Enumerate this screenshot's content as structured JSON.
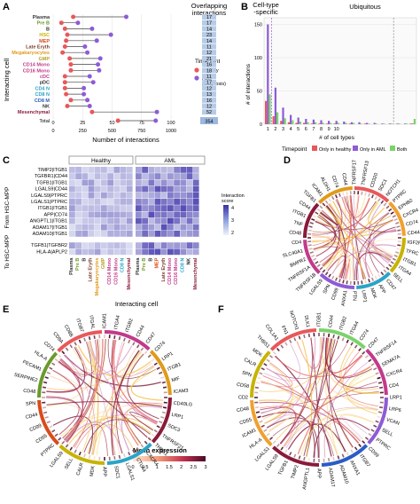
{
  "panels": {
    "a": "A",
    "b": "B",
    "c": "C",
    "d": "D",
    "e": "E",
    "f": "F"
  },
  "panelA": {
    "ylabel": "Interacting cell",
    "xlabel": "Number of interactions",
    "overlap_title": "Overlapping\ninteractions",
    "legend_title": "Timepoint",
    "legend_items": [
      {
        "label": "Healthy",
        "color": "#e8585a"
      },
      {
        "label": "AML\n(diagnosis)",
        "color": "#8e5bd6"
      }
    ],
    "xticks": [
      "0",
      "25",
      "50",
      "75",
      "100"
    ],
    "total_xticks": [
      "0",
      "250",
      "500",
      "750",
      "1000"
    ],
    "cells": [
      {
        "name": "Plasma",
        "color": "#333333",
        "healthy": 17,
        "aml": 62,
        "overlap": "17"
      },
      {
        "name": "Pre B",
        "color": "#6a9a2a",
        "healthy": 7,
        "aml": 21,
        "overlap": "17"
      },
      {
        "name": "B",
        "color": "#333333",
        "healthy": 10,
        "aml": 33,
        "overlap": "14"
      },
      {
        "name": "HSC",
        "color": "#c7b300",
        "healthy": 12,
        "aml": 49,
        "overlap": "23"
      },
      {
        "name": "MEP",
        "color": "#d94b1a",
        "healthy": 11,
        "aml": 37,
        "overlap": "14"
      },
      {
        "name": "Late Eryth",
        "color": "#7a3b2a",
        "healthy": 10,
        "aml": 27,
        "overlap": "11"
      },
      {
        "name": "Megakaryocytes",
        "color": "#e09a1a",
        "healthy": 8,
        "aml": 29,
        "overlap": "12"
      },
      {
        "name": "GMP",
        "color": "#b5a12a",
        "healthy": 14,
        "aml": 40,
        "overlap": "21"
      },
      {
        "name": "CD14 Mono",
        "color": "#c23a8a",
        "healthy": 15,
        "aml": 38,
        "overlap": "16"
      },
      {
        "name": "CD16 Mono",
        "color": "#c23a8a",
        "healthy": 15,
        "aml": 39,
        "overlap": "18"
      },
      {
        "name": "cDC",
        "color": "#c23a8a",
        "healthy": 10,
        "aml": 31,
        "overlap": "11"
      },
      {
        "name": "pDC",
        "color": "#333333",
        "healthy": 10,
        "aml": 34,
        "overlap": "17"
      },
      {
        "name": "CD4 N",
        "color": "#2aa3c7",
        "healthy": 10,
        "aml": 26,
        "overlap": "12"
      },
      {
        "name": "CD8 N",
        "color": "#2aa3c7",
        "healthy": 11,
        "aml": 26,
        "overlap": "13"
      },
      {
        "name": "CD8 M",
        "color": "#2a5cc7",
        "healthy": 15,
        "aml": 29,
        "overlap": "16"
      },
      {
        "name": "NK",
        "color": "#333333",
        "healthy": 12,
        "aml": 31,
        "overlap": "12"
      },
      {
        "name": "Mesenchymal",
        "color": "#8a1a3a",
        "healthy": 33,
        "aml": 88,
        "overlap": "52"
      }
    ],
    "total": {
      "name": "Total",
      "healthy": 550,
      "aml": 870,
      "overlap": "354"
    }
  },
  "panelB": {
    "title_left": "Cell-type\n-specific",
    "title_right": "Ubiquitous",
    "ylabel": "# of interactions",
    "xlabel": "# of cell types",
    "yticks": [
      "0",
      "50",
      "100",
      "150"
    ],
    "legend_title": "Timepoint",
    "legend_items": [
      {
        "label": "Only in healthy",
        "color": "#e8585a"
      },
      {
        "label": "Only in AML",
        "color": "#8e5bd6"
      },
      {
        "label": "Both",
        "color": "#7bd36a"
      }
    ]
  },
  "chart_data": {
    "type": "bar",
    "categories": [
      "1",
      "2",
      "3",
      "4",
      "5",
      "6",
      "7",
      "8",
      "9",
      "10",
      "11",
      "12",
      "13",
      "14",
      "15",
      "16",
      "17",
      "18",
      "19",
      "20"
    ],
    "series": [
      {
        "name": "Only in healthy",
        "values": [
          35,
          12,
          5,
          3,
          2,
          2,
          1,
          1,
          1,
          1,
          0,
          1,
          0,
          1,
          0,
          0,
          0,
          0,
          0,
          1
        ]
      },
      {
        "name": "Only in AML",
        "values": [
          150,
          55,
          25,
          14,
          10,
          8,
          7,
          6,
          5,
          5,
          4,
          3,
          3,
          2,
          2,
          1,
          1,
          1,
          1,
          1
        ]
      },
      {
        "name": "Both",
        "values": [
          45,
          18,
          9,
          6,
          4,
          3,
          3,
          2,
          2,
          2,
          2,
          2,
          1,
          1,
          1,
          1,
          1,
          1,
          1,
          8
        ]
      }
    ],
    "xlabel": "# of cell types",
    "ylabel": "# of interactions",
    "ylim": [
      0,
      160
    ]
  },
  "panelC": {
    "col_headers": [
      "Healthy",
      "AML"
    ],
    "rowgroup_from": "From HSC-MPP",
    "rowgroup_to": "To HSC-MPP",
    "xlabel": "Interacting cell",
    "legend_title": "Interaction\nscore",
    "legend_ticks": [
      "4",
      "3",
      "2"
    ],
    "rows_from": [
      "TIMP2|ITGB1",
      "TGFBR1|CD44",
      "TGFB1|ITGB1",
      "LGALS9|CD44",
      "LGALS9|PTPRC",
      "LGALS1|PTPRC",
      "ITGB1|ITGB1",
      "APP|CD74",
      "ANGPTL1|ITGB1",
      "ADAM17|ITGB1",
      "ADAM10|ITGB1"
    ],
    "rows_to": [
      "TGFB1|TGFBR2",
      "HLA-A|APLP2"
    ],
    "col_labels": [
      {
        "label": "Plasma",
        "color": "#333333"
      },
      {
        "label": "Pre B",
        "color": "#6a9a2a"
      },
      {
        "label": "B",
        "color": "#333333"
      },
      {
        "label": "Late Eryth",
        "color": "#7a3b2a"
      },
      {
        "label": "Megakaryocytes",
        "color": "#e09a1a"
      },
      {
        "label": "GMP",
        "color": "#b5a12a"
      },
      {
        "label": "CD14 Mono",
        "color": "#c23a8a"
      },
      {
        "label": "CD16 Mono",
        "color": "#c23a8a"
      },
      {
        "label": "CD8 N",
        "color": "#2aa3c7"
      },
      {
        "label": "Mesenchymal",
        "color": "#8a1a3a"
      }
    ],
    "col_labels_aml": [
      {
        "label": "Plasma",
        "color": "#333333"
      },
      {
        "label": "Pre B",
        "color": "#6a9a2a"
      },
      {
        "label": "B",
        "color": "#333333"
      },
      {
        "label": "MEP",
        "color": "#d94b1a"
      },
      {
        "label": "Late Eryth",
        "color": "#7a3b2a"
      },
      {
        "label": "CD14 Mono",
        "color": "#c23a8a"
      },
      {
        "label": "CD16 Mono",
        "color": "#c23a8a"
      },
      {
        "label": "CD8 N",
        "color": "#2aa3c7"
      },
      {
        "label": "NK",
        "color": "#333333"
      },
      {
        "label": "Mesenchymal",
        "color": "#8a1a3a"
      }
    ]
  },
  "panelD": {
    "labels": [
      "TNFRSF17",
      "TNFRSF13",
      "CD320",
      "SDC1",
      "NOTCH1",
      "PTPRC",
      "EPHB2",
      "CXCR4",
      "CD74",
      "CD44",
      "IGF2R",
      "TFRC",
      "ITGB1",
      "ITGA4",
      "SELL",
      "CD47",
      "APP",
      "MDK",
      "LRP1",
      "PTN",
      "ANXA1",
      "CD99",
      "SPN",
      "LGALS9",
      "TNFRSF1B",
      "TNFRSF1A",
      "BMPR2",
      "SLC40A1",
      "CD4",
      "CD48",
      "TNF",
      "ITGB1",
      "CD44",
      "TGFB1",
      "ICAM1",
      "ALDH1",
      "CD74",
      "CD44"
    ]
  },
  "panelE": {
    "labels": [
      "ICAM1",
      "ITGA4",
      "ITGB2",
      "CD44",
      "CD47",
      "CD74",
      "LRP1",
      "ITGB1",
      "MIF",
      "ICAM3",
      "CD40LG",
      "LRP1",
      "SDC3",
      "TNFRSF21",
      "THBS1",
      "CXCR4",
      "CTLA4",
      "LGALS1",
      "SDC1",
      "APP",
      "MDK",
      "CALR",
      "SELL",
      "LGALS9",
      "PTPRC",
      "CD55",
      "CD99",
      "CD44",
      "SPN",
      "CD48",
      "SERPINE2",
      "PECAM1",
      "HLA-A",
      "CD74",
      "CD8A",
      "CD8B",
      "ITGB7",
      "ITGAL"
    ]
  },
  "panelF": {
    "labels": [
      "ITGB1",
      "CD44",
      "ITGB2",
      "ITGA4",
      "CD74",
      "CD47",
      "TNFRSF14",
      "SEMA7A",
      "CXCR4",
      "CD4",
      "LRP1",
      "LRP6",
      "VCAN",
      "SELL",
      "PTPRC",
      "CD99",
      "ITGB7",
      "ANXA1",
      "ADAM10",
      "ADAM17",
      "APP",
      "ANGPTL1",
      "TIMP2",
      "TGFB1",
      "LGALS9",
      "LGALS1",
      "HLA-A",
      "ICAM1",
      "CD55",
      "CD48",
      "CD2",
      "CD58",
      "SPN",
      "CALR",
      "MDK",
      "THBS1",
      "COL1A1",
      "FN1",
      "NOTCH1",
      "DLK1"
    ]
  },
  "meanExpr": {
    "title": "Mean expression",
    "ticks": [
      "0",
      "0.5",
      "1",
      "1.5",
      "2",
      "2.5",
      "3"
    ]
  },
  "palette": {
    "healthy": "#e8585a",
    "aml": "#8e5bd6",
    "both": "#7bd36a",
    "heat_low": "#eef2fa",
    "heat_high": "#3b2fa8"
  }
}
